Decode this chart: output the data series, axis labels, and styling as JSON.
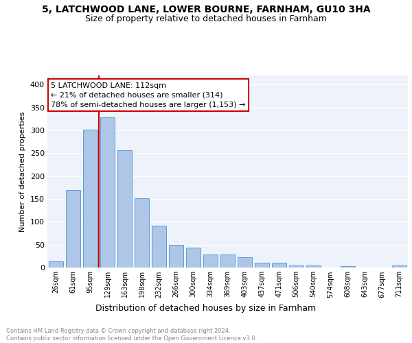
{
  "title": "5, LATCHWOOD LANE, LOWER BOURNE, FARNHAM, GU10 3HA",
  "subtitle": "Size of property relative to detached houses in Farnham",
  "xlabel": "Distribution of detached houses by size in Farnham",
  "ylabel": "Number of detached properties",
  "categories": [
    "26sqm",
    "61sqm",
    "95sqm",
    "129sqm",
    "163sqm",
    "198sqm",
    "232sqm",
    "266sqm",
    "300sqm",
    "334sqm",
    "369sqm",
    "403sqm",
    "437sqm",
    "471sqm",
    "506sqm",
    "540sqm",
    "574sqm",
    "608sqm",
    "643sqm",
    "677sqm",
    "711sqm"
  ],
  "values": [
    14,
    170,
    302,
    328,
    257,
    152,
    91,
    50,
    43,
    29,
    28,
    22,
    11,
    10,
    5,
    5,
    0,
    3,
    0,
    0,
    4
  ],
  "bar_color": "#aec6e8",
  "bar_edge_color": "#5a9fd4",
  "annotation_line_color": "#cc0000",
  "annotation_box_text": "5 LATCHWOOD LANE: 112sqm\n← 21% of detached houses are smaller (314)\n78% of semi-detached houses are larger (1,153) →",
  "annotation_box_edge_color": "#cc0000",
  "footer_text": "Contains HM Land Registry data © Crown copyright and database right 2024.\nContains public sector information licensed under the Open Government Licence v3.0.",
  "ylim": [
    0,
    420
  ],
  "background_color": "#eef2fa",
  "grid_color": "#ffffff",
  "title_fontsize": 10,
  "subtitle_fontsize": 9,
  "yticks": [
    0,
    50,
    100,
    150,
    200,
    250,
    300,
    350,
    400
  ]
}
